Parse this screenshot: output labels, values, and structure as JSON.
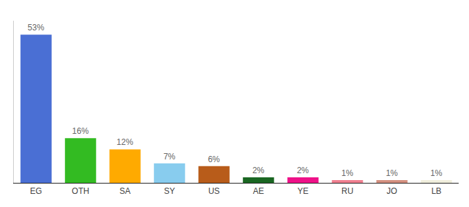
{
  "chart_data": {
    "type": "bar",
    "categories": [
      "EG",
      "OTH",
      "SA",
      "SY",
      "US",
      "AE",
      "YE",
      "RU",
      "JO",
      "LB"
    ],
    "values": [
      53,
      16,
      12,
      7,
      6,
      2,
      2,
      1,
      1,
      1
    ],
    "value_labels": [
      "53%",
      "16%",
      "12%",
      "7%",
      "6%",
      "2%",
      "2%",
      "1%",
      "1%",
      "1%"
    ],
    "colors": [
      "#4a6fd4",
      "#33bb22",
      "#ffaa00",
      "#88ccee",
      "#b85c1a",
      "#1a6622",
      "#ee1188",
      "#f08090",
      "#d49080",
      "#f0eedc"
    ],
    "ylim": [
      0,
      58
    ],
    "yticks": [],
    "grid": false,
    "tick_labels": "x",
    "data_labels": true
  }
}
